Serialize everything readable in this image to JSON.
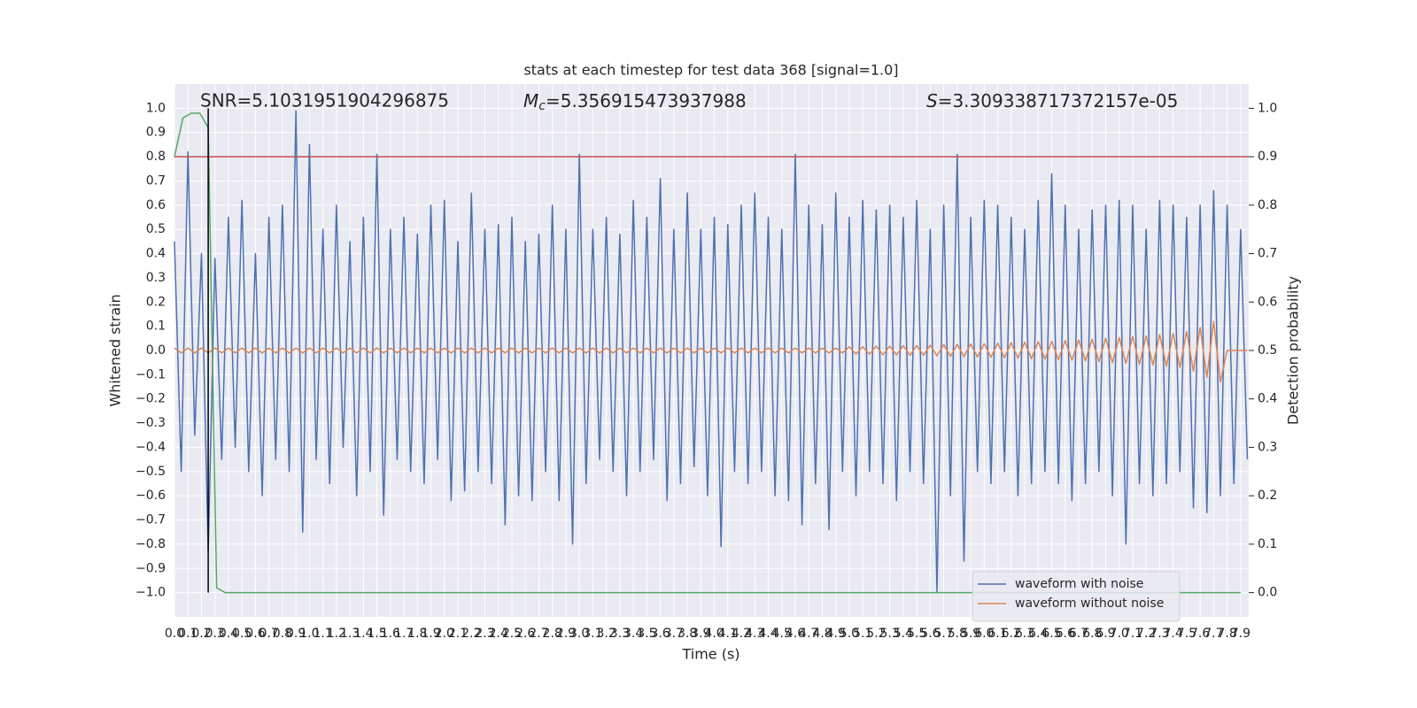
{
  "chart_data": {
    "type": "line",
    "title": "stats at each timestep for test data 368 [signal=1.0]",
    "xlabel": "Time (s)",
    "ylabel": "Whitened strain",
    "y2label": "Detection probability",
    "annotations": [
      {
        "text": "SNR=5.1031951904296875"
      },
      {
        "symbol": "M",
        "subscript": "c",
        "text": "=5.356915473937988"
      },
      {
        "symbol": "S",
        "text": "=3.309338717372157e-05"
      }
    ],
    "grid": true,
    "legend": "lower right",
    "xlim": [
      0,
      7.96
    ],
    "ylim": [
      -1.1,
      1.1
    ],
    "y2lim": [
      -0.05,
      1.05
    ],
    "xticks": [
      {
        "value": 0,
        "label": "0.0"
      },
      0.1,
      0.2,
      0.3,
      0.4,
      0.5,
      0.6,
      0.7,
      0.8,
      0.9,
      {
        "value": 1,
        "label": "1.0"
      },
      1.1,
      1.2,
      1.3,
      1.4,
      1.5,
      1.6,
      1.7,
      1.8,
      1.9,
      {
        "value": 2,
        "label": "2.0"
      },
      2.1,
      2.2,
      2.3,
      2.4,
      2.5,
      2.6,
      2.7,
      2.8,
      2.9,
      {
        "value": 3,
        "label": "3.0"
      },
      3.1,
      3.2,
      3.3,
      3.4,
      3.5,
      3.6,
      3.7,
      3.8,
      3.9,
      {
        "value": 4,
        "label": "4.0"
      },
      4.1,
      4.2,
      4.3,
      4.4,
      4.5,
      4.6,
      4.7,
      4.8,
      4.9,
      {
        "value": 5,
        "label": "5.0"
      },
      5.1,
      5.2,
      5.3,
      5.4,
      5.5,
      5.6,
      5.7,
      5.8,
      5.9,
      {
        "value": 6,
        "label": "6.0"
      },
      6.1,
      6.2,
      6.3,
      6.4,
      6.5,
      6.6,
      6.7,
      6.8,
      6.9,
      {
        "value": 7,
        "label": "7.0"
      },
      7.1,
      7.2,
      7.3,
      7.4,
      7.5,
      7.6,
      7.7,
      7.8,
      7.9
    ],
    "yticks": [
      {
        "value": -1,
        "label": "−1.0"
      },
      {
        "value": -0.9,
        "label": "−0.9"
      },
      {
        "value": -0.8,
        "label": "−0.8"
      },
      {
        "value": -0.7,
        "label": "−0.7"
      },
      {
        "value": -0.6,
        "label": "−0.6"
      },
      {
        "value": -0.5,
        "label": "−0.5"
      },
      {
        "value": -0.4,
        "label": "−0.4"
      },
      {
        "value": -0.3,
        "label": "−0.3"
      },
      {
        "value": -0.2,
        "label": "−0.2"
      },
      {
        "value": -0.1,
        "label": "−0.1"
      },
      {
        "value": 0,
        "label": "0.0"
      },
      0.1,
      0.2,
      0.3,
      0.4,
      0.5,
      0.6,
      0.7,
      0.8,
      0.9,
      {
        "value": 1,
        "label": "1.0"
      }
    ],
    "y2ticks": [
      {
        "value": 0,
        "label": "0.0"
      },
      0.1,
      0.2,
      0.3,
      0.4,
      0.5,
      0.6,
      0.7,
      0.8,
      0.9,
      {
        "value": 1,
        "label": "1.0"
      }
    ],
    "threshold": {
      "value": 0.9,
      "axis": "y2",
      "color": "#c44e52"
    },
    "marker_line": {
      "x": 0.25,
      "ymin": -1.0,
      "ymax": 1.0,
      "color": "#000000"
    },
    "x": [
      0,
      0.05,
      0.1,
      0.15,
      0.2,
      0.25,
      0.3,
      0.35,
      0.4,
      0.45,
      0.5,
      0.55,
      0.6,
      0.65,
      0.7,
      0.75,
      0.8,
      0.85,
      0.9,
      0.95,
      1,
      1.05,
      1.1,
      1.15,
      1.2,
      1.25,
      1.3,
      1.35,
      1.4,
      1.45,
      1.5,
      1.55,
      1.6,
      1.65,
      1.7,
      1.75,
      1.8,
      1.85,
      1.9,
      1.95,
      2,
      2.05,
      2.1,
      2.15,
      2.2,
      2.25,
      2.3,
      2.35,
      2.4,
      2.45,
      2.5,
      2.55,
      2.6,
      2.65,
      2.7,
      2.75,
      2.8,
      2.85,
      2.9,
      2.95,
      3,
      3.05,
      3.1,
      3.15,
      3.2,
      3.25,
      3.3,
      3.35,
      3.4,
      3.45,
      3.5,
      3.55,
      3.6,
      3.65,
      3.7,
      3.75,
      3.8,
      3.85,
      3.9,
      3.95,
      4,
      4.05,
      4.1,
      4.15,
      4.2,
      4.25,
      4.3,
      4.35,
      4.4,
      4.45,
      4.5,
      4.55,
      4.6,
      4.65,
      4.7,
      4.75,
      4.8,
      4.85,
      4.9,
      4.95,
      5,
      5.05,
      5.1,
      5.15,
      5.2,
      5.25,
      5.3,
      5.35,
      5.4,
      5.45,
      5.5,
      5.55,
      5.6,
      5.65,
      5.7,
      5.75,
      5.8,
      5.85,
      5.9,
      5.95,
      6,
      6.05,
      6.1,
      6.15,
      6.2,
      6.25,
      6.3,
      6.35,
      6.4,
      6.45,
      6.5,
      6.55,
      6.6,
      6.65,
      6.7,
      6.75,
      6.8,
      6.85,
      6.9,
      6.95,
      7,
      7.05,
      7.1,
      7.15,
      7.2,
      7.25,
      7.3,
      7.35,
      7.4,
      7.45,
      7.5,
      7.55,
      7.6,
      7.65,
      7.7,
      7.75,
      7.8,
      7.85,
      7.9,
      7.95
    ],
    "series": [
      {
        "name": "waveform with noise",
        "color": "#4c72b0",
        "values": [
          0.45,
          -0.5,
          0.82,
          -0.35,
          0.4,
          -0.83,
          0.38,
          -0.45,
          0.55,
          -0.4,
          0.62,
          -0.5,
          0.4,
          -0.6,
          0.55,
          -0.45,
          0.6,
          -0.5,
          0.99,
          -0.75,
          0.85,
          -0.45,
          0.5,
          -0.55,
          0.6,
          -0.4,
          0.45,
          -0.6,
          0.55,
          -0.5,
          0.81,
          -0.68,
          0.5,
          -0.45,
          0.55,
          -0.5,
          0.48,
          -0.55,
          0.6,
          -0.45,
          0.62,
          -0.62,
          0.45,
          -0.58,
          0.65,
          -0.5,
          0.5,
          -0.55,
          0.52,
          -0.72,
          0.55,
          -0.6,
          0.45,
          -0.62,
          0.48,
          -0.5,
          0.6,
          -0.62,
          0.5,
          -0.8,
          0.81,
          -0.55,
          0.5,
          -0.45,
          0.55,
          -0.5,
          0.48,
          -0.6,
          0.62,
          -0.5,
          0.55,
          -0.45,
          0.71,
          -0.62,
          0.5,
          -0.55,
          0.65,
          -0.48,
          0.5,
          -0.6,
          0.55,
          -0.81,
          0.52,
          -0.5,
          0.6,
          -0.55,
          0.65,
          -0.5,
          0.55,
          -0.6,
          0.5,
          -0.62,
          0.81,
          -0.72,
          0.6,
          -0.55,
          0.52,
          -0.74,
          0.65,
          -0.5,
          0.55,
          -0.6,
          0.62,
          -0.5,
          0.58,
          -0.55,
          0.6,
          -0.62,
          0.55,
          -0.5,
          0.62,
          -0.55,
          0.5,
          -1.0,
          0.6,
          -0.6,
          0.81,
          -0.87,
          0.55,
          -0.5,
          0.62,
          -0.55,
          0.6,
          -0.5,
          0.55,
          -0.6,
          0.5,
          -0.55,
          0.62,
          -0.5,
          0.73,
          -0.55,
          0.6,
          -0.62,
          0.5,
          -0.55,
          0.58,
          -0.5,
          0.6,
          -0.6,
          0.62,
          -0.8,
          0.6,
          -0.55,
          0.5,
          -0.6,
          0.62,
          -0.55,
          0.6,
          -0.5,
          0.55,
          -0.65,
          0.6,
          -0.67,
          0.66,
          -0.6,
          0.6,
          -0.55,
          0.5,
          -0.45
        ]
      },
      {
        "name": "waveform without noise",
        "color": "#dd8452",
        "values": [
          0.01,
          -0.01,
          0.01,
          -0.01,
          0.01,
          -0.01,
          0.01,
          -0.01,
          0.01,
          -0.01,
          0.01,
          -0.01,
          0.01,
          -0.01,
          0.01,
          -0.01,
          0.01,
          -0.01,
          0.01,
          -0.01,
          0.01,
          -0.01,
          0.01,
          -0.01,
          0.01,
          -0.01,
          0.01,
          -0.01,
          0.01,
          -0.01,
          0.01,
          -0.01,
          0.01,
          -0.01,
          0.01,
          -0.01,
          0.01,
          -0.01,
          0.01,
          -0.01,
          0.01,
          -0.01,
          0.01,
          -0.01,
          0.01,
          -0.01,
          0.01,
          -0.01,
          0.01,
          -0.01,
          0.01,
          -0.01,
          0.01,
          -0.01,
          0.01,
          -0.01,
          0.01,
          -0.01,
          0.01,
          -0.01,
          0.01,
          -0.01,
          0.01,
          -0.01,
          0.01,
          -0.01,
          0.01,
          -0.01,
          0.01,
          -0.01,
          0.01,
          -0.01,
          0.01,
          -0.01,
          0.01,
          -0.01,
          0.01,
          -0.01,
          0.01,
          -0.01,
          0.01,
          -0.01,
          0.01,
          -0.01,
          0.01,
          -0.01,
          0.01,
          -0.01,
          0.01,
          -0.01,
          0.01,
          -0.01,
          0.01,
          -0.01,
          0.01,
          -0.01,
          0.01,
          -0.01,
          0.01,
          -0.01,
          0.015,
          -0.015,
          0.015,
          -0.015,
          0.018,
          -0.018,
          0.018,
          -0.018,
          0.02,
          -0.02,
          0.02,
          -0.02,
          0.022,
          -0.022,
          0.024,
          -0.024,
          0.025,
          -0.025,
          0.027,
          -0.027,
          0.028,
          -0.028,
          0.03,
          -0.03,
          0.032,
          -0.032,
          0.034,
          -0.034,
          0.036,
          -0.036,
          0.038,
          -0.038,
          0.04,
          -0.04,
          0.043,
          -0.043,
          0.046,
          -0.046,
          0.05,
          -0.05,
          0.053,
          -0.053,
          0.057,
          -0.057,
          0.06,
          -0.06,
          0.065,
          -0.065,
          0.07,
          -0.07,
          0.078,
          -0.085,
          0.095,
          -0.11,
          0.12,
          -0.13,
          0,
          0,
          0,
          0
        ]
      },
      {
        "color": "#55a868",
        "axis": "y2",
        "x": [
          0,
          0.0625,
          0.125,
          0.1875,
          0.25,
          0.3125,
          0.375,
          7.9
        ],
        "values": [
          0.9,
          0.98,
          0.99,
          0.99,
          0.96,
          0.01,
          0,
          0
        ]
      }
    ]
  }
}
